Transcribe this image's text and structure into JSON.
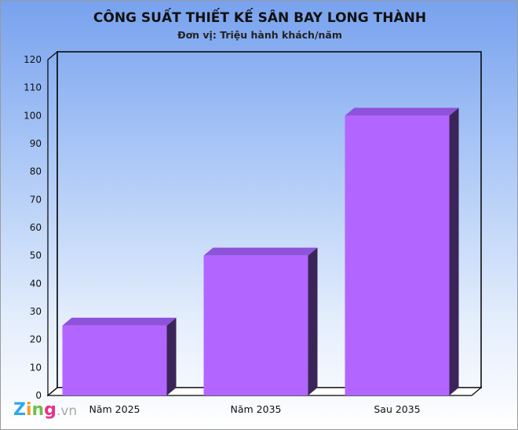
{
  "chart_data": {
    "type": "bar",
    "title": "CÔNG SUẤT THIẾT KẾ SÂN BAY LONG THÀNH",
    "subtitle": "Đơn vị: Triệu hành khách/năm",
    "categories": [
      "Năm 2025",
      "Năm 2035",
      "Sau 2035"
    ],
    "values": [
      25,
      50,
      100
    ],
    "ylim": [
      0,
      120
    ],
    "yticks": [
      0,
      10,
      20,
      30,
      40,
      50,
      60,
      70,
      80,
      90,
      100,
      110,
      120
    ],
    "grid": false,
    "style": "3d",
    "colors": {
      "bar_front": "#b366ff",
      "bar_top": "#8f52db",
      "bar_side": "#3b2558"
    }
  },
  "watermark": {
    "text": "Zing.vn"
  }
}
